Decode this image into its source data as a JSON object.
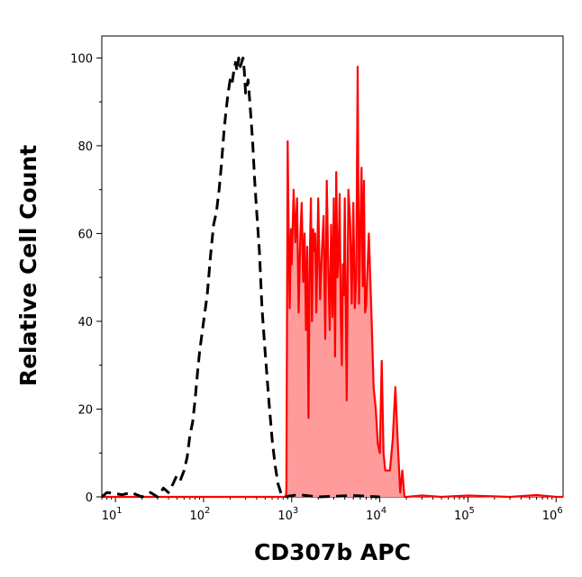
{
  "chart_data": {
    "type": "area",
    "xlabel": "CD307b APC",
    "ylabel": "Relative Cell Count",
    "x_scale": "log",
    "xlim": [
      7,
      1200000
    ],
    "ylim": [
      0,
      105
    ],
    "y_ticks": [
      0,
      20,
      40,
      60,
      80,
      100
    ],
    "x_ticks": [
      {
        "value": 10,
        "base": "10",
        "exp": "1"
      },
      {
        "value": 100,
        "base": "10",
        "exp": "2"
      },
      {
        "value": 1000,
        "base": "10",
        "exp": "3"
      },
      {
        "value": 10000,
        "base": "10",
        "exp": "4"
      },
      {
        "value": 100000,
        "base": "10",
        "exp": "5"
      },
      {
        "value": 1000000,
        "base": "10",
        "exp": "6"
      }
    ],
    "grid": false,
    "series": [
      {
        "style": "dashed-line",
        "color": "#000000",
        "points": [
          [
            7,
            0
          ],
          [
            8,
            1
          ],
          [
            12,
            0.5
          ],
          [
            15,
            1
          ],
          [
            20,
            0
          ],
          [
            25,
            1
          ],
          [
            30,
            0
          ],
          [
            35,
            2
          ],
          [
            40,
            1
          ],
          [
            45,
            3
          ],
          [
            50,
            5
          ],
          [
            55,
            4
          ],
          [
            60,
            6
          ],
          [
            65,
            9
          ],
          [
            70,
            14
          ],
          [
            75,
            17
          ],
          [
            80,
            22
          ],
          [
            85,
            28
          ],
          [
            90,
            33
          ],
          [
            100,
            40
          ],
          [
            110,
            46
          ],
          [
            120,
            55
          ],
          [
            130,
            62
          ],
          [
            140,
            65
          ],
          [
            150,
            70
          ],
          [
            160,
            76
          ],
          [
            170,
            83
          ],
          [
            180,
            88
          ],
          [
            190,
            92
          ],
          [
            200,
            95
          ],
          [
            210,
            94
          ],
          [
            220,
            97
          ],
          [
            230,
            99
          ],
          [
            240,
            97
          ],
          [
            250,
            100
          ],
          [
            260,
            98
          ],
          [
            270,
            99
          ],
          [
            280,
            100
          ],
          [
            290,
            97
          ],
          [
            300,
            92
          ],
          [
            320,
            95
          ],
          [
            340,
            88
          ],
          [
            360,
            81
          ],
          [
            380,
            72
          ],
          [
            400,
            65
          ],
          [
            430,
            56
          ],
          [
            460,
            43
          ],
          [
            500,
            33
          ],
          [
            550,
            22
          ],
          [
            600,
            13
          ],
          [
            650,
            7
          ],
          [
            700,
            3
          ],
          [
            750,
            1
          ],
          [
            800,
            0
          ],
          [
            1200,
            0.5
          ],
          [
            2000,
            0
          ],
          [
            5000,
            0.3
          ],
          [
            10000,
            0
          ]
        ]
      },
      {
        "style": "filled-area",
        "color": "#ff0000",
        "fill": "#ff9b9b",
        "points": [
          [
            7,
            0
          ],
          [
            860,
            0
          ],
          [
            870,
            2
          ],
          [
            880,
            30
          ],
          [
            900,
            81
          ],
          [
            920,
            62
          ],
          [
            950,
            43
          ],
          [
            980,
            61
          ],
          [
            1000,
            53
          ],
          [
            1050,
            70
          ],
          [
            1100,
            58
          ],
          [
            1150,
            68
          ],
          [
            1200,
            42
          ],
          [
            1250,
            59
          ],
          [
            1300,
            67
          ],
          [
            1350,
            49
          ],
          [
            1400,
            60
          ],
          [
            1450,
            38
          ],
          [
            1500,
            57
          ],
          [
            1550,
            18
          ],
          [
            1600,
            54
          ],
          [
            1650,
            68
          ],
          [
            1700,
            40
          ],
          [
            1750,
            61
          ],
          [
            1800,
            56
          ],
          [
            1850,
            60
          ],
          [
            1900,
            42
          ],
          [
            1950,
            54
          ],
          [
            2000,
            68
          ],
          [
            2100,
            45
          ],
          [
            2200,
            56
          ],
          [
            2300,
            64
          ],
          [
            2400,
            36
          ],
          [
            2500,
            72
          ],
          [
            2600,
            52
          ],
          [
            2700,
            38
          ],
          [
            2800,
            62
          ],
          [
            2900,
            41
          ],
          [
            3000,
            68
          ],
          [
            3100,
            32
          ],
          [
            3200,
            74
          ],
          [
            3300,
            50
          ],
          [
            3400,
            55
          ],
          [
            3500,
            69
          ],
          [
            3600,
            42
          ],
          [
            3700,
            30
          ],
          [
            3800,
            53
          ],
          [
            3900,
            46
          ],
          [
            4000,
            68
          ],
          [
            4200,
            22
          ],
          [
            4400,
            70
          ],
          [
            4600,
            63
          ],
          [
            4800,
            44
          ],
          [
            5000,
            67
          ],
          [
            5200,
            43
          ],
          [
            5400,
            50
          ],
          [
            5600,
            98
          ],
          [
            5800,
            44
          ],
          [
            6000,
            60
          ],
          [
            6200,
            75
          ],
          [
            6400,
            48
          ],
          [
            6600,
            72
          ],
          [
            6800,
            42
          ],
          [
            7000,
            44
          ],
          [
            7500,
            60
          ],
          [
            8000,
            43
          ],
          [
            8500,
            25
          ],
          [
            9000,
            20
          ],
          [
            9500,
            12
          ],
          [
            10000,
            10
          ],
          [
            10500,
            31
          ],
          [
            11000,
            10
          ],
          [
            11500,
            6
          ],
          [
            12000,
            6
          ],
          [
            13000,
            6
          ],
          [
            14000,
            13
          ],
          [
            15000,
            25
          ],
          [
            16000,
            12
          ],
          [
            17000,
            1
          ],
          [
            18000,
            6
          ],
          [
            19000,
            0
          ],
          [
            20000,
            0
          ],
          [
            30000,
            0.3
          ],
          [
            50000,
            0
          ],
          [
            100000,
            0.3
          ],
          [
            300000,
            0
          ],
          [
            600000,
            0.4
          ],
          [
            1000000,
            0
          ],
          [
            1200000,
            0
          ]
        ]
      }
    ]
  }
}
